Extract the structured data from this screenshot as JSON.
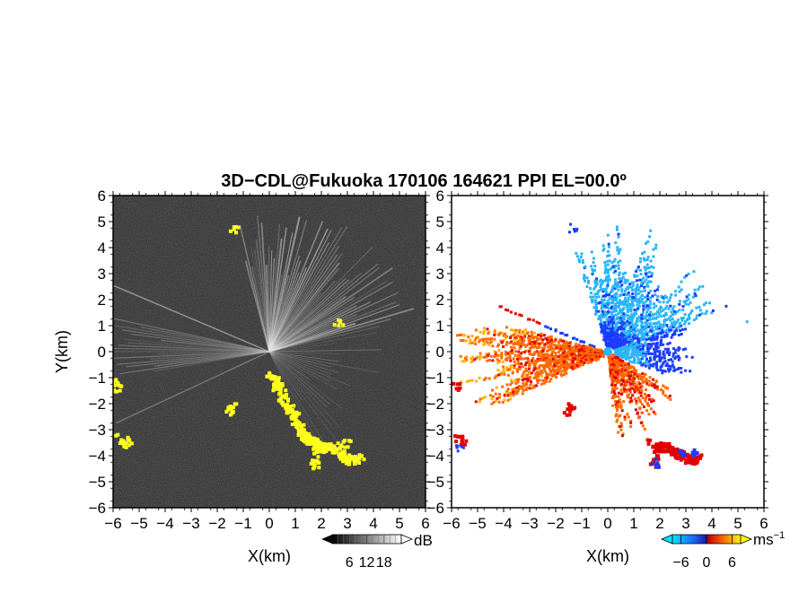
{
  "title": "3D−CDL@Fukuoka 170106 164621 PPI EL=00.0º",
  "chart_data": [
    {
      "type": "heatmap",
      "quantity": "reflectivity",
      "xlabel": "X(km)",
      "ylabel": "Y(km)",
      "xlim": [
        -6,
        6
      ],
      "ylim": [
        -6,
        6
      ],
      "xticks": [
        "−6",
        "−5",
        "−4",
        "−3",
        "−2",
        "−1",
        "0",
        "1",
        "2",
        "3",
        "4",
        "5",
        "6"
      ],
      "yticks": [
        "6",
        "5",
        "4",
        "3",
        "2",
        "1",
        "0",
        "−1",
        "−2",
        "−3",
        "−4",
        "−5",
        "−6"
      ],
      "background_color": "#2b2b2b",
      "highlight_color": "#ffff1a",
      "colorbar": {
        "unit": "dB",
        "ticks": [
          "6",
          "12",
          "18"
        ],
        "range": [
          0,
          24
        ]
      }
    },
    {
      "type": "heatmap",
      "quantity": "doppler velocity",
      "xlabel": "X(km)",
      "xlim": [
        -6,
        6
      ],
      "ylim": [
        -6,
        6
      ],
      "xticks": [
        "−6",
        "−5",
        "−4",
        "−3",
        "−2",
        "−1",
        "0",
        "1",
        "2",
        "3",
        "4",
        "5",
        "6"
      ],
      "colors": {
        "approaching": "#29b6f6",
        "receding": "#ff6a00",
        "strong_negative": "#1a3cff",
        "strong_positive": "#e00000"
      },
      "colorbar": {
        "unit": "ms",
        "unit_exponent": "−1",
        "ticks": [
          "−6",
          "0",
          "6"
        ],
        "range": [
          -8,
          8
        ]
      }
    }
  ]
}
